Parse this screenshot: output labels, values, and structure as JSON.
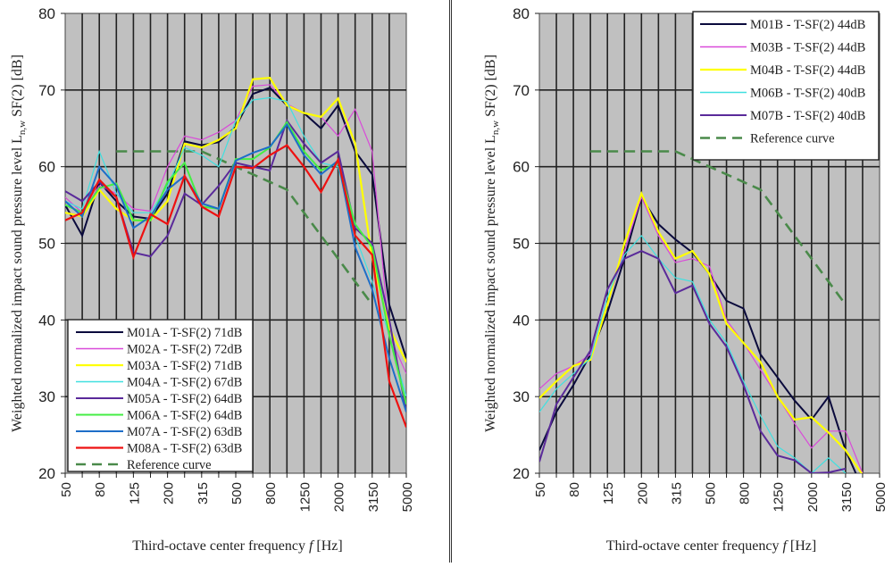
{
  "chart_data": [
    {
      "type": "line",
      "name": "left",
      "xlabel_prefix": "Third-octave center frequency ",
      "xlabel_var": "f",
      "xlabel_suffix": " [Hz]",
      "ylabel_main": "Weighted normalized impact sound pressure level L",
      "ylabel_sub": "n,w",
      "ylabel_tail": " SF(2)  [dB]",
      "ylim": [
        20,
        80
      ],
      "yticks": [
        20,
        30,
        40,
        50,
        60,
        70,
        80
      ],
      "grid": true,
      "legend_position": "bottom-left",
      "x": [
        "50",
        "63",
        "80",
        "100",
        "125",
        "160",
        "200",
        "250",
        "315",
        "400",
        "500",
        "630",
        "800",
        "1000",
        "1250",
        "1600",
        "2000",
        "2500",
        "3150",
        "4000",
        "5000"
      ],
      "xtick_labels": [
        "50",
        "80",
        "125",
        "200",
        "315",
        "500",
        "800",
        "1250",
        "2000",
        "3150",
        "5000"
      ],
      "series": [
        {
          "name": "M01A - T-SF(2) 71dB",
          "color": "#0a0a3c",
          "width": 2,
          "values": [
            55,
            51,
            58,
            55.5,
            53.5,
            53.2,
            56.5,
            63.3,
            62.8,
            63.2,
            65.2,
            69.5,
            70.3,
            68,
            67,
            65,
            68,
            62,
            59,
            42,
            35
          ]
        },
        {
          "name": "M02A - T-SF(2) 72dB",
          "color": "#d94ad9",
          "width": 1.2,
          "values": [
            56,
            54,
            57.5,
            56.5,
            54.5,
            54.2,
            60,
            64,
            63.5,
            64.5,
            66,
            70.5,
            70.7,
            68.2,
            67,
            66.5,
            64,
            67.5,
            62,
            38,
            33
          ]
        },
        {
          "name": "M03A - T-SF(2) 71dB",
          "color": "#ffff00",
          "width": 2.2,
          "values": [
            54,
            53.5,
            57,
            54.5,
            53,
            53,
            55.5,
            63,
            62.5,
            63.5,
            65,
            71.4,
            71.6,
            68,
            67,
            66.5,
            68.9,
            63,
            48,
            39,
            34.5
          ]
        },
        {
          "name": "M04A - T-SF(2) 67dB",
          "color": "#40e0e0",
          "width": 1.2,
          "values": [
            55.5,
            54.5,
            62,
            56.5,
            54,
            54,
            57.5,
            62.5,
            61.5,
            60,
            66,
            68.7,
            69,
            68.5,
            64,
            60.5,
            60,
            51,
            45,
            38,
            30
          ]
        },
        {
          "name": "M05A - T-SF(2) 64dB",
          "color": "#5a2a9a",
          "width": 2,
          "values": [
            56.8,
            55.5,
            58,
            56,
            48.8,
            48.3,
            51,
            56.5,
            55,
            57.5,
            60.5,
            60,
            59.5,
            66,
            63,
            60.5,
            62,
            52,
            50,
            40,
            28
          ]
        },
        {
          "name": "M06A - T-SF(2) 64dB",
          "color": "#44ee44",
          "width": 2,
          "values": [
            55,
            54,
            57.2,
            57.8,
            53,
            53,
            58,
            60.5,
            54.8,
            54.5,
            61,
            61,
            62.5,
            65.8,
            62,
            59.5,
            60.5,
            52.5,
            49.5,
            38,
            29
          ]
        },
        {
          "name": "M07A - T-SF(2) 63dB",
          "color": "#1e6ec8",
          "width": 2,
          "values": [
            55.5,
            53.5,
            60,
            57.5,
            52,
            53.5,
            57,
            58.8,
            55.2,
            54.5,
            60.8,
            61.8,
            62.6,
            65.5,
            61.5,
            59,
            60.8,
            49.5,
            44,
            35,
            28
          ]
        },
        {
          "name": "M08A - T-SF(2) 63dB",
          "color": "#ee1111",
          "width": 2.2,
          "values": [
            53,
            54,
            58.3,
            56,
            48.2,
            53.8,
            52.5,
            58.8,
            54.8,
            53.5,
            60,
            59.8,
            61.5,
            62.8,
            60,
            56.7,
            60.9,
            51,
            48.5,
            32,
            26
          ]
        }
      ],
      "reference": {
        "name": "Reference curve",
        "color": "#4a8a4a",
        "x_start_index": 3,
        "values": [
          62,
          62,
          62,
          62,
          62,
          62,
          61,
          60,
          59,
          58,
          57,
          54,
          51,
          48,
          45,
          42
        ]
      }
    },
    {
      "type": "line",
      "name": "right",
      "xlabel_prefix": "Third-octave center frequency ",
      "xlabel_var": "f",
      "xlabel_suffix": " [Hz]",
      "ylabel_main": "Weighted normalized impact sound pressure level L",
      "ylabel_sub": "n,w",
      "ylabel_tail": " SF(2)  [dB]",
      "ylim": [
        20,
        80
      ],
      "yticks": [
        20,
        30,
        40,
        50,
        60,
        70,
        80
      ],
      "grid": true,
      "legend_position": "top-right",
      "x": [
        "50",
        "63",
        "80",
        "100",
        "125",
        "160",
        "200",
        "250",
        "315",
        "400",
        "500",
        "630",
        "800",
        "1000",
        "1250",
        "1600",
        "2000",
        "2500",
        "3150",
        "4000",
        "5000"
      ],
      "xtick_labels": [
        "50",
        "80",
        "125",
        "200",
        "315",
        "500",
        "800",
        "1250",
        "2000",
        "3150",
        "5000"
      ],
      "series": [
        {
          "name": "M01B - T-SF(2) 44dB",
          "color": "#0a0a3c",
          "width": 2,
          "values": [
            23,
            28,
            31.5,
            35.5,
            41,
            48,
            56,
            52.5,
            50.5,
            48.8,
            46,
            42.5,
            41.5,
            35.5,
            32.5,
            29.5,
            27,
            30,
            23,
            18,
            null
          ]
        },
        {
          "name": "M03B - T-SF(2) 44dB",
          "color": "#d94ad9",
          "width": 1.2,
          "values": [
            31,
            33,
            34,
            35.5,
            42,
            49,
            56,
            51,
            47.5,
            48,
            47,
            40,
            37,
            33.5,
            30,
            26.5,
            23.3,
            25.5,
            25.5,
            20,
            null
          ]
        },
        {
          "name": "M04B - T-SF(2) 44dB",
          "color": "#ffff00",
          "width": 2.2,
          "values": [
            29.8,
            32,
            34,
            34.8,
            42,
            50,
            56.5,
            51.5,
            48,
            49,
            46,
            39.5,
            37,
            34.5,
            30,
            27,
            27.3,
            25.3,
            23,
            19.8,
            null
          ]
        },
        {
          "name": "M06B - T-SF(2) 40dB",
          "color": "#40e0e0",
          "width": 1.2,
          "values": [
            28,
            31,
            33,
            35,
            43,
            48.5,
            51,
            48,
            45.5,
            45,
            40,
            37,
            32,
            27.5,
            23.5,
            22,
            20,
            22,
            20,
            null,
            null
          ]
        },
        {
          "name": "M07B - T-SF(2) 40dB",
          "color": "#5a2a9a",
          "width": 2,
          "values": [
            21.5,
            29,
            32.5,
            36,
            44,
            48,
            49,
            48,
            43.5,
            44.5,
            39.5,
            36.5,
            31.5,
            25.5,
            22.3,
            21.7,
            20,
            20.1,
            20.6,
            null,
            null
          ]
        }
      ],
      "reference": {
        "name": "Reference curve",
        "color": "#4a8a4a",
        "x_start_index": 3,
        "values": [
          62,
          62,
          62,
          62,
          62,
          62,
          61,
          60,
          59,
          58,
          57,
          54,
          51,
          48,
          45,
          42
        ]
      }
    }
  ]
}
